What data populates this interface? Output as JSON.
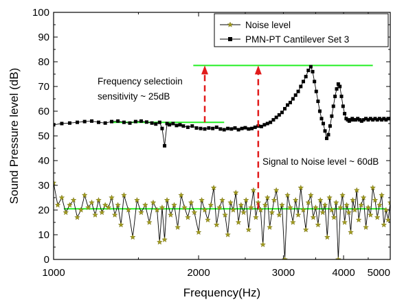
{
  "chart_data": {
    "type": "line",
    "x_scale": "log",
    "xlabel": "Frequency(Hz)",
    "ylabel": "Sound Pressure level (dB)",
    "xlim": [
      1000,
      5000
    ],
    "ylim": [
      0,
      100
    ],
    "x_ticks": [
      1000,
      2000,
      3000,
      4000,
      5000
    ],
    "x_tick_labels": [
      "1000",
      "2000",
      "3000",
      "4000",
      "5000"
    ],
    "y_ticks": [
      0,
      10,
      20,
      30,
      40,
      50,
      60,
      70,
      80,
      90,
      100
    ],
    "y_tick_labels": [
      "0",
      "10",
      "20",
      "30",
      "40",
      "50",
      "60",
      "70",
      "80",
      "90",
      "100"
    ],
    "legend_position": "top-right",
    "series": [
      {
        "name": "Noise level",
        "marker": "star",
        "color": "#000000",
        "marker_color": "#a09a1e",
        "x": [
          1000,
          1020,
          1040,
          1060,
          1080,
          1100,
          1120,
          1140,
          1160,
          1180,
          1200,
          1220,
          1240,
          1260,
          1280,
          1300,
          1320,
          1340,
          1360,
          1380,
          1400,
          1430,
          1460,
          1490,
          1520,
          1550,
          1580,
          1610,
          1640,
          1660,
          1680,
          1700,
          1720,
          1750,
          1780,
          1810,
          1840,
          1870,
          1900,
          1930,
          1960,
          2000,
          2030,
          2060,
          2090,
          2120,
          2150,
          2180,
          2210,
          2240,
          2270,
          2300,
          2330,
          2360,
          2390,
          2420,
          2450,
          2480,
          2510,
          2540,
          2570,
          2600,
          2630,
          2660,
          2690,
          2720,
          2750,
          2780,
          2810,
          2840,
          2870,
          2900,
          2940,
          2980,
          3020,
          3060,
          3100,
          3140,
          3180,
          3220,
          3260,
          3300,
          3340,
          3380,
          3420,
          3460,
          3500,
          3540,
          3580,
          3620,
          3660,
          3700,
          3740,
          3780,
          3820,
          3860,
          3900,
          3940,
          3980,
          4020,
          4060,
          4100,
          4140,
          4180,
          4220,
          4260,
          4300,
          4350,
          4400,
          4450,
          4500,
          4550,
          4600,
          4650,
          4700,
          4750,
          4800,
          4850,
          4900,
          4950,
          5000
        ],
        "y": [
          31,
          22,
          25,
          19,
          22,
          24,
          17,
          20,
          26,
          21,
          23,
          18,
          24,
          19,
          22,
          21,
          25,
          18,
          22,
          14,
          26,
          20,
          9,
          24,
          19,
          22,
          15,
          23,
          20,
          7,
          21,
          8,
          24,
          18,
          22,
          13,
          26,
          21,
          17,
          23,
          19,
          11,
          24,
          20,
          16,
          22,
          29,
          14,
          21,
          24,
          18,
          10,
          23,
          20,
          27,
          15,
          22,
          19,
          24,
          12,
          21,
          28,
          17,
          23,
          20,
          6,
          22,
          25,
          13,
          19,
          24,
          28,
          18,
          22,
          0,
          26,
          21,
          15,
          24,
          18,
          29,
          20,
          12,
          23,
          26,
          17,
          21,
          14,
          24,
          19,
          22,
          9,
          25,
          20,
          17,
          23,
          0,
          21,
          26,
          15,
          22,
          19,
          11,
          24,
          20,
          28,
          16,
          22,
          25,
          13,
          21,
          18,
          29,
          24,
          17,
          22,
          26,
          14,
          20,
          16,
          23
        ]
      },
      {
        "name": "PMN-PT Cantilever Set 3",
        "marker": "square",
        "color": "#000000",
        "marker_color": "#000000",
        "x": [
          1000,
          1040,
          1080,
          1120,
          1160,
          1200,
          1240,
          1280,
          1320,
          1360,
          1400,
          1440,
          1480,
          1520,
          1560,
          1600,
          1630,
          1660,
          1680,
          1700,
          1720,
          1740,
          1770,
          1800,
          1830,
          1860,
          1900,
          1940,
          1980,
          2020,
          2060,
          2100,
          2140,
          2180,
          2220,
          2260,
          2300,
          2340,
          2380,
          2420,
          2460,
          2500,
          2540,
          2580,
          2620,
          2660,
          2700,
          2740,
          2780,
          2820,
          2860,
          2900,
          2940,
          2980,
          3020,
          3060,
          3100,
          3140,
          3180,
          3220,
          3260,
          3300,
          3340,
          3380,
          3420,
          3450,
          3480,
          3510,
          3540,
          3570,
          3600,
          3630,
          3660,
          3690,
          3720,
          3750,
          3780,
          3810,
          3840,
          3870,
          3900,
          3930,
          3960,
          3990,
          4020,
          4050,
          4080,
          4110,
          4140,
          4170,
          4200,
          4240,
          4280,
          4320,
          4360,
          4400,
          4450,
          4500,
          4550,
          4600,
          4650,
          4700,
          4750,
          4800,
          4850,
          4900,
          4950,
          5000
        ],
        "y": [
          54.5,
          55,
          55.2,
          55.5,
          55.8,
          56,
          55.5,
          55.2,
          55.8,
          56,
          55.5,
          55.2,
          55.8,
          56,
          55.6,
          55.2,
          54.8,
          55.5,
          53,
          46,
          55,
          54.5,
          55,
          54.2,
          54.5,
          54,
          53.5,
          54,
          53.2,
          53,
          52.8,
          53.2,
          53,
          53.5,
          52.8,
          52.5,
          53,
          52.8,
          53.2,
          52.5,
          53,
          53.3,
          52.8,
          53,
          53.5,
          54,
          53.8,
          54.5,
          55,
          55.5,
          56.5,
          57.5,
          58.5,
          59.5,
          61,
          62.5,
          63.5,
          65,
          66.5,
          68,
          70,
          72,
          74,
          76.5,
          78,
          76,
          72,
          68,
          64,
          60,
          57,
          55,
          52,
          49,
          50.5,
          54,
          58,
          62,
          66,
          69,
          71,
          70,
          66,
          62,
          59,
          57,
          56.5,
          56,
          56.5,
          57,
          56.5,
          56.5,
          57,
          56.5,
          56,
          56.5,
          57,
          56.5,
          57,
          56.5,
          57,
          56.5,
          57,
          56.5,
          57,
          56.5,
          57,
          57
        ]
      }
    ],
    "reference_lines": [
      {
        "x": [
          1330,
          2260
        ],
        "y": 55.5,
        "color": "#22ee22"
      },
      {
        "x": [
          1950,
          4600
        ],
        "y": 78.5,
        "color": "#22ee22"
      },
      {
        "x": [
          1050,
          4900
        ],
        "y": 20.5,
        "color": "#22ee22"
      }
    ],
    "arrows": [
      {
        "x": 2060,
        "from": 55.5,
        "to": 78.5,
        "color": "#e11b1b"
      },
      {
        "x": 2660,
        "from": 20.5,
        "to": 78.5,
        "color": "#e11b1b"
      }
    ],
    "annotations": [
      {
        "line1": "Frequency selectioin",
        "line2": "sensitivity ~ 25dB"
      },
      {
        "text": "Signal to Noise level ~ 60dB"
      }
    ]
  }
}
